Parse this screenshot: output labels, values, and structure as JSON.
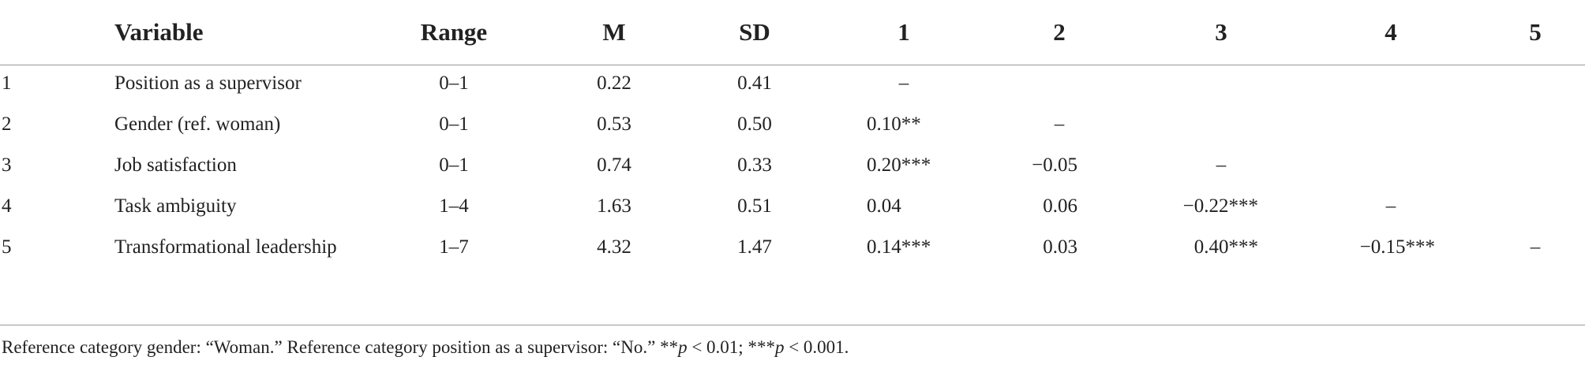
{
  "table": {
    "header": [
      "Variable",
      "Range",
      "M",
      "SD",
      "1",
      "2",
      "3",
      "4",
      "5"
    ],
    "rows": [
      [
        "1",
        "Position as a supervisor",
        "0–1",
        "0.22",
        "0.41",
        "–",
        null,
        null,
        null,
        null
      ],
      [
        "2",
        "Gender (ref. woman)",
        "0–1",
        "0.53",
        "0.50",
        "0.10**",
        "–",
        null,
        null,
        null
      ],
      [
        "3",
        "Job satisfaction",
        "0–1",
        "0.74",
        "0.33",
        "0.20***",
        "−0.05",
        "–",
        null,
        null
      ],
      [
        "4",
        "Task ambiguity",
        "1–4",
        "1.63",
        "0.51",
        "0.04",
        "0.06",
        "−0.22***",
        "–",
        null
      ],
      [
        "5",
        "Transformational leadership",
        "1–7",
        "4.32",
        "1.47",
        "0.14***",
        "0.03",
        "0.40***",
        "−0.15***",
        "–"
      ]
    ]
  },
  "footnote": [
    "Reference category gender: “Woman.” Reference category position as a supervisor: “No.” **",
    "p",
    " < 0.01; ***",
    "p",
    " < 0.001."
  ]
}
